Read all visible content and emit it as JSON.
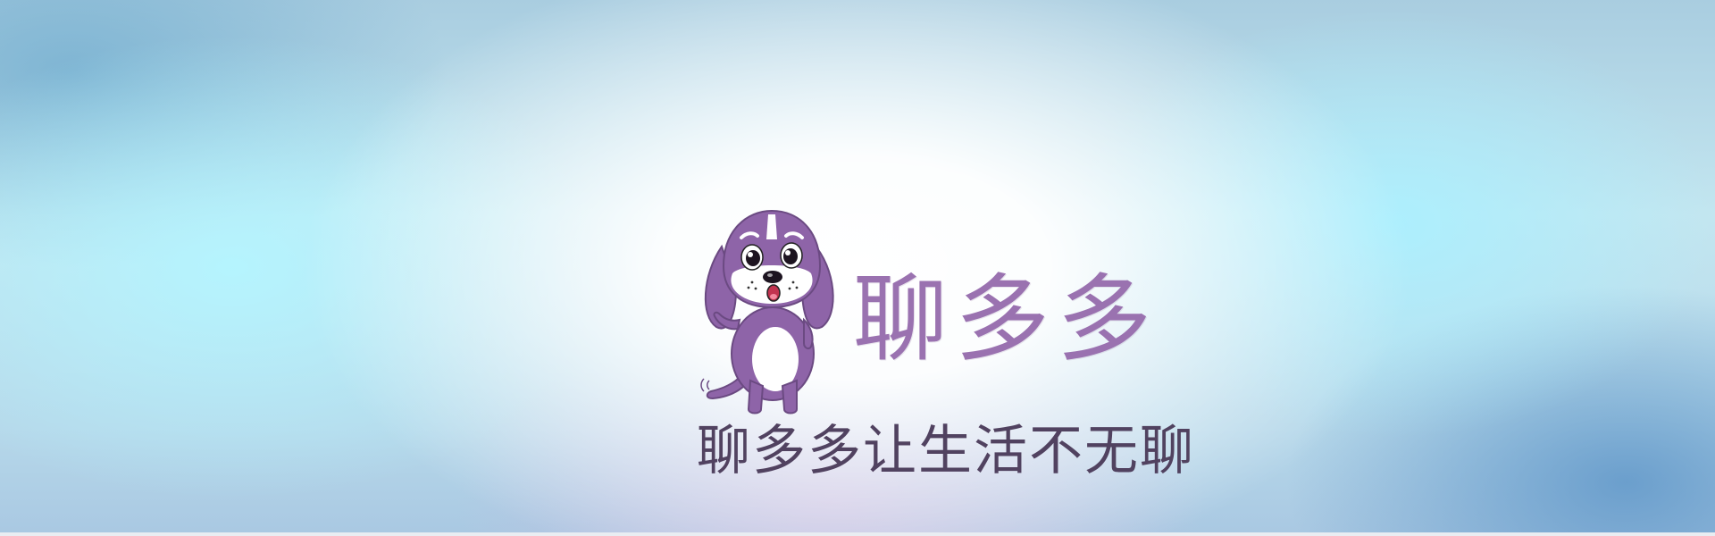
{
  "banner": {
    "brand_name": "聊多多",
    "slogan": "聊多多让生活不无聊",
    "mascot_icon": "purple-puppy-mascot-icon",
    "colors": {
      "brand_text": "#9a72b0",
      "slogan_text": "#514260",
      "mascot_body": "#8e64a8"
    }
  }
}
